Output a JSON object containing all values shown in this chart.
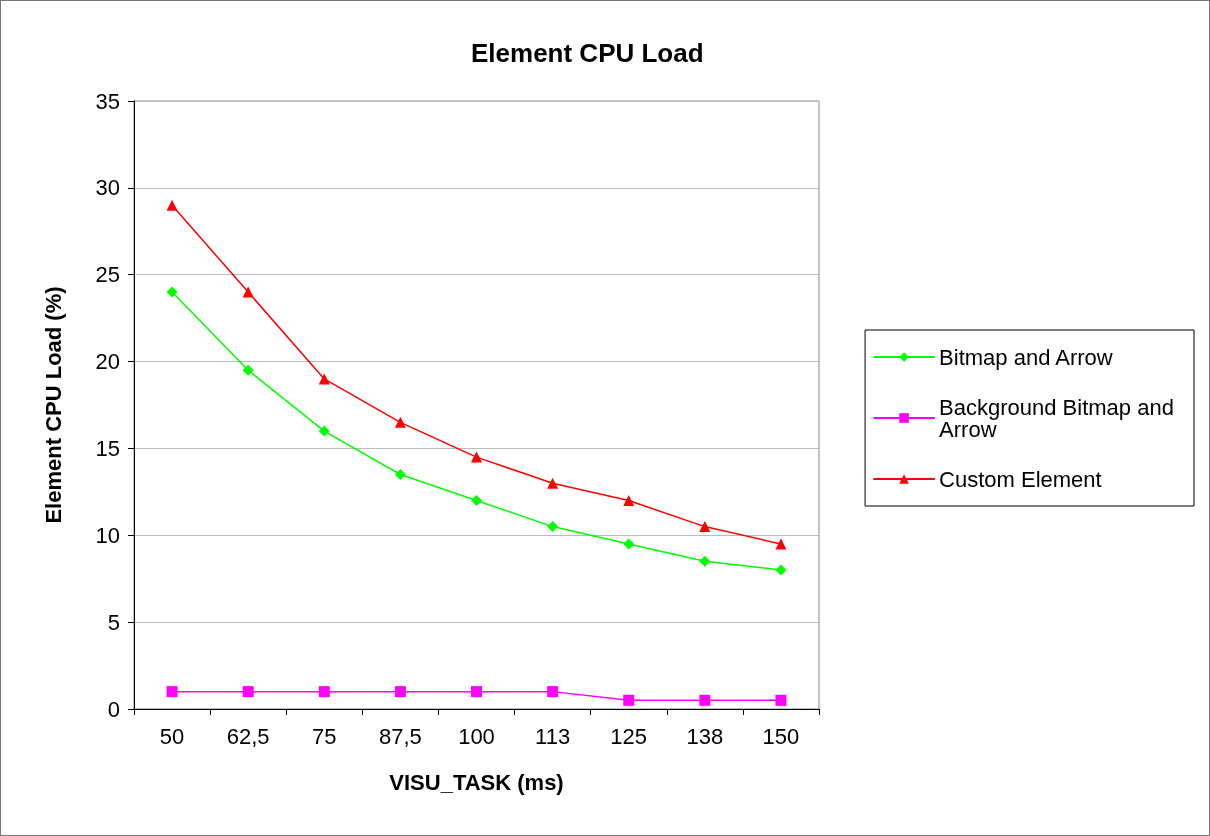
{
  "chart_data": {
    "type": "line",
    "title": "Element CPU Load",
    "xlabel": "VISU_TASK (ms)",
    "ylabel": "Element CPU Load (%)",
    "categories": [
      "50",
      "62,5",
      "75",
      "87,5",
      "100",
      "113",
      "125",
      "138",
      "150"
    ],
    "series": [
      {
        "name": "Bitmap and Arrow",
        "color": "#00ff00",
        "marker": "diamond",
        "values": [
          24,
          19.5,
          16,
          13.5,
          12,
          10.5,
          9.5,
          8.5,
          8
        ]
      },
      {
        "name": "Background Bitmap and Arrow",
        "color": "#ff00ff",
        "marker": "square",
        "values": [
          1,
          1,
          1,
          1,
          1,
          1,
          0.5,
          0.5,
          0.5
        ]
      },
      {
        "name": "Custom Element",
        "color": "#ff0000",
        "marker": "triangle",
        "values": [
          29,
          24,
          19,
          16.5,
          14.5,
          13,
          12,
          10.5,
          9.5
        ]
      }
    ],
    "ylim": [
      0,
      35
    ],
    "yticks": [
      0,
      5,
      10,
      15,
      20,
      25,
      30,
      35
    ],
    "grid": "y",
    "legend": "right",
    "line_style": "solid"
  }
}
